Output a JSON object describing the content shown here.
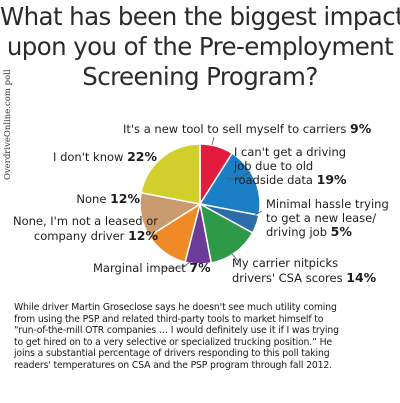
{
  "chart_data": {
    "type": "pie",
    "title": "What has been the biggest impact upon you of the Pre-employment Screening Program?",
    "title_lines": [
      "What has been the biggest impact",
      "upon you of the Pre-employment",
      "Screening Program?"
    ],
    "source": "OverdriveOnline.com poll",
    "slices": [
      {
        "label": "It's a new tool to sell myself to carriers",
        "lines": [
          "It's a new tool to sell myself to carriers"
        ],
        "value": 9,
        "value_label": "9%",
        "color": "#e31b3d"
      },
      {
        "label": "I can't get a driving job due to old roadside data",
        "lines": [
          "I can't get a driving",
          "job due to old",
          "roadside data"
        ],
        "value": 19,
        "value_label": "19%",
        "color": "#1a7fc4"
      },
      {
        "label": "Minimal hassle trying to get a new lease/ driving job",
        "lines": [
          "Minimal hassle trying",
          "to get a new lease/",
          "driving job"
        ],
        "value": 5,
        "value_label": "5%",
        "color": "#2b6da8"
      },
      {
        "label": "My carrier nitpicks drivers' CSA scores",
        "lines": [
          "My carrier nitpicks",
          "drivers' CSA scores"
        ],
        "value": 14,
        "value_label": "14%",
        "color": "#2e9a49"
      },
      {
        "label": "Marginal impact",
        "lines": [
          "Marginal impact"
        ],
        "value": 7,
        "value_label": "7%",
        "color": "#6b3b97"
      },
      {
        "label": "None, I'm not a leased or company driver",
        "lines": [
          "None, I'm not a leased or",
          "company driver"
        ],
        "value": 12,
        "value_label": "12%",
        "color": "#ef8a26"
      },
      {
        "label": "None",
        "lines": [
          "None"
        ],
        "value": 12,
        "value_label": "12%",
        "color": "#c99b6e"
      },
      {
        "label": "I don't know",
        "lines": [
          "I don't know"
        ],
        "value": 22,
        "value_label": "22%",
        "color": "#d2cf2c"
      }
    ]
  },
  "caption_lines": [
    "While driver Martin Groseclose says he doesn't see much utility coming",
    "from using the PSP and related third-party tools to market himself to",
    "“run-of-the-mill OTR companies … I would definitely use it if I was trying",
    "to get hired on to a very selective or specialized trucking position.” He",
    "joins a substantial percentage of drivers responding to this poll taking",
    "readers' temperatures on CSA and the PSP program through fall 2012."
  ]
}
